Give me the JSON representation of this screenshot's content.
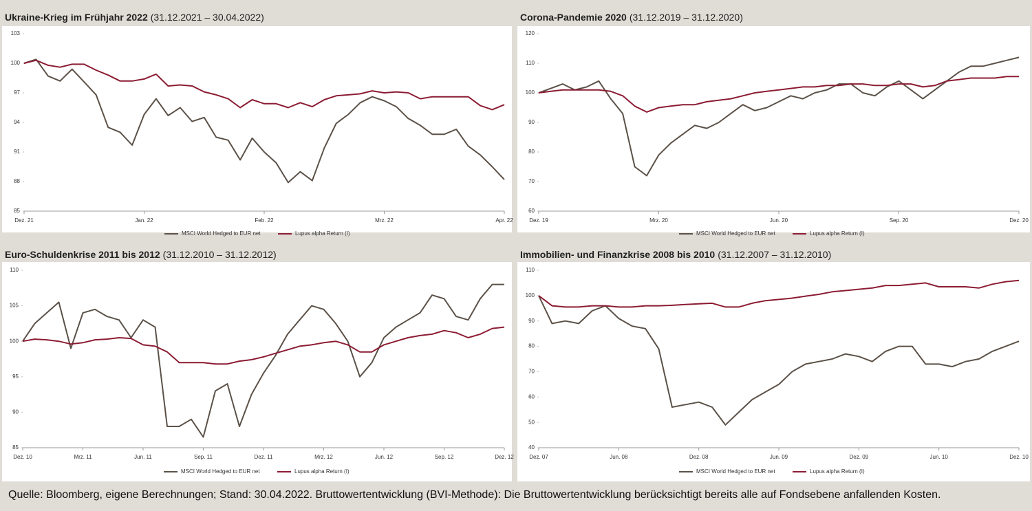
{
  "chart_data": [
    {
      "type": "line",
      "title": "Ukraine-Krieg im Frühjahr 2022",
      "subtitle": "(31.12.2021 – 30.04.2022)",
      "categories": [
        "Dez. 21",
        null,
        null,
        null,
        null,
        null,
        null,
        null,
        null,
        null,
        "Jan. 22",
        null,
        null,
        null,
        null,
        null,
        null,
        null,
        null,
        null,
        "Feb. 22",
        null,
        null,
        null,
        null,
        null,
        null,
        null,
        null,
        null,
        "Mrz. 22",
        null,
        null,
        null,
        null,
        null,
        null,
        null,
        null,
        null,
        "Apr. 22"
      ],
      "ylim": [
        85,
        103
      ],
      "yticks": [
        85,
        88,
        91,
        94,
        97,
        100,
        103
      ],
      "series": [
        {
          "name": "MSCI World Hedged to EUR net",
          "color": "#5b5148",
          "values": [
            100,
            100.4,
            98.7,
            98.2,
            99.4,
            98.1,
            96.8,
            93.5,
            93.0,
            91.7,
            94.8,
            96.4,
            94.7,
            95.5,
            94.1,
            94.5,
            92.5,
            92.2,
            90.2,
            92.4,
            91.0,
            89.9,
            87.9,
            89.0,
            88.1,
            91.4,
            93.9,
            94.8,
            96.0,
            96.6,
            96.2,
            95.6,
            94.4,
            93.7,
            92.8,
            92.8,
            93.3,
            91.6,
            90.7,
            89.5,
            88.2
          ]
        },
        {
          "name": "Lupus alpha Return (I)",
          "color": "#8c1c33",
          "values": [
            100,
            100.3,
            99.8,
            99.6,
            99.9,
            99.9,
            99.3,
            98.8,
            98.2,
            98.2,
            98.4,
            98.9,
            97.7,
            97.8,
            97.7,
            97.1,
            96.8,
            96.4,
            95.5,
            96.3,
            95.9,
            95.9,
            95.5,
            96.0,
            95.6,
            96.3,
            96.7,
            96.8,
            96.9,
            97.2,
            97.0,
            97.1,
            97.0,
            96.4,
            96.6,
            96.6,
            96.6,
            96.6,
            95.7,
            95.3,
            95.8
          ]
        }
      ]
    },
    {
      "type": "line",
      "title": "Corona-Pandemie 2020",
      "subtitle": "(31.12.2019 – 31.12.2020)",
      "categories": [
        "Dez. 19",
        null,
        null,
        null,
        null,
        null,
        null,
        null,
        null,
        null,
        "Mrz. 20",
        null,
        null,
        null,
        null,
        null,
        null,
        null,
        null,
        null,
        "Jun. 20",
        null,
        null,
        null,
        null,
        null,
        null,
        null,
        null,
        null,
        "Sep. 20",
        null,
        null,
        null,
        null,
        null,
        null,
        null,
        null,
        null,
        "Dez. 20"
      ],
      "ylim": [
        60,
        120
      ],
      "yticks": [
        60,
        70,
        80,
        90,
        100,
        110,
        120
      ],
      "series": [
        {
          "name": "MSCI World Hedged to EUR net",
          "color": "#5b5148",
          "values": [
            100,
            101.5,
            103,
            101,
            102,
            104,
            98,
            93,
            75,
            72,
            79,
            83,
            86,
            89,
            88,
            90,
            93,
            96,
            94,
            95,
            97,
            99,
            98,
            100,
            101,
            103,
            103,
            100,
            99,
            102,
            104,
            101,
            98,
            101,
            104,
            107,
            109,
            109,
            110,
            111,
            112
          ]
        },
        {
          "name": "Lupus alpha Return (I)",
          "color": "#8c1c33",
          "values": [
            100,
            100.5,
            101,
            101,
            101,
            101,
            100.5,
            99,
            95.5,
            93.5,
            95,
            95.5,
            96,
            96,
            97,
            97.5,
            98,
            99,
            100,
            100.5,
            101,
            101.5,
            102,
            102,
            102.5,
            102.5,
            103,
            103,
            102.5,
            102.5,
            103,
            103,
            102,
            102.5,
            104,
            104.5,
            105,
            105,
            105,
            105.5,
            105.5
          ]
        }
      ]
    },
    {
      "type": "line",
      "title": "Euro-Schuldenkrise 2011 bis 2012",
      "subtitle": "(31.12.2010 – 31.12.2012)",
      "categories": [
        "Dez. 10",
        null,
        null,
        null,
        null,
        "Mrz. 11",
        null,
        null,
        null,
        null,
        "Jun. 11",
        null,
        null,
        null,
        null,
        "Sep. 11",
        null,
        null,
        null,
        null,
        "Dez. 11",
        null,
        null,
        null,
        null,
        "Mrz. 12",
        null,
        null,
        null,
        null,
        "Jun. 12",
        null,
        null,
        null,
        null,
        "Sep. 12",
        null,
        null,
        null,
        null,
        "Dez. 12"
      ],
      "ylim": [
        85,
        110
      ],
      "yticks": [
        85,
        90,
        95,
        100,
        105,
        110
      ],
      "series": [
        {
          "name": "MSCI World Hedged to EUR net",
          "color": "#5b5148",
          "values": [
            100,
            102.5,
            104,
            105.5,
            99,
            104,
            104.5,
            103.5,
            103,
            100.5,
            103,
            102,
            88,
            88,
            89,
            86.5,
            93,
            94,
            88,
            92.5,
            95.5,
            98,
            101,
            103,
            105,
            104.5,
            102.5,
            100,
            95,
            97,
            100.5,
            102,
            103,
            104,
            106.5,
            106,
            103.5,
            103,
            106,
            108,
            108
          ]
        },
        {
          "name": "Lupus alpha Return (I)",
          "color": "#8c1c33",
          "values": [
            100,
            100.3,
            100.2,
            100,
            99.6,
            99.8,
            100.2,
            100.3,
            100.5,
            100.4,
            99.5,
            99.3,
            98.5,
            97,
            97,
            97,
            96.8,
            96.8,
            97.2,
            97.4,
            97.8,
            98.3,
            98.8,
            99.3,
            99.5,
            99.8,
            100,
            99.5,
            98.5,
            98.5,
            99.5,
            100,
            100.5,
            100.8,
            101,
            101.5,
            101.2,
            100.5,
            101,
            101.8,
            102
          ]
        }
      ]
    },
    {
      "type": "line",
      "title": "Immobilien- und Finanzkrise 2008 bis 2010",
      "subtitle": "(31.12.2007 – 31.12.2010)",
      "categories": [
        "Dez. 07",
        null,
        null,
        null,
        null,
        null,
        "Jun. 08",
        null,
        null,
        null,
        null,
        null,
        "Dez. 08",
        null,
        null,
        null,
        null,
        null,
        "Jun. 09",
        null,
        null,
        null,
        null,
        null,
        "Dez. 09",
        null,
        null,
        null,
        null,
        null,
        "Jun. 10",
        null,
        null,
        null,
        null,
        null,
        "Dez. 10"
      ],
      "ylim": [
        40,
        110
      ],
      "yticks": [
        40,
        50,
        60,
        70,
        80,
        90,
        100,
        110
      ],
      "series": [
        {
          "name": "MSCI World Hedged to EUR net",
          "color": "#5b5148",
          "values": [
            100,
            89,
            90,
            89,
            94,
            96,
            91,
            88,
            87,
            79,
            56,
            57,
            58,
            56,
            49,
            54,
            59,
            62,
            65,
            70,
            73,
            74,
            75,
            77,
            76,
            74,
            78,
            80,
            80,
            73,
            73,
            72,
            74,
            75,
            78,
            80,
            82
          ]
        },
        {
          "name": "Lupus alpha Return (I)",
          "color": "#8c1c33",
          "values": [
            100,
            96,
            95.5,
            95.5,
            96,
            96,
            95.5,
            95.5,
            96,
            96,
            96.2,
            96.5,
            96.8,
            97,
            95.5,
            95.5,
            97,
            98,
            98.5,
            99,
            99.8,
            100.5,
            101.5,
            102,
            102.5,
            103,
            104,
            104,
            104.5,
            105,
            103.5,
            103.5,
            103.5,
            103,
            104.5,
            105.5,
            106
          ]
        }
      ]
    }
  ],
  "footer": "Quelle: Bloomberg, eigene Berechnungen; Stand: 30.04.2022.  Bruttowertentwicklung (BVI-Methode): Die Bruttowertentwicklung berücksichtigt bereits alle auf Fondsebene anfallenden Kosten."
}
